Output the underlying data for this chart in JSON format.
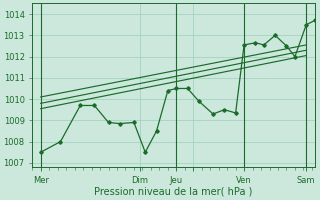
{
  "xlabel": "Pression niveau de la mer( hPa )",
  "bg_color": "#cce8dc",
  "grid_color": "#9ecfbb",
  "line_color": "#1a6b2a",
  "ylim": [
    1006.8,
    1014.5
  ],
  "xlim": [
    0,
    100
  ],
  "yticks": [
    1007,
    1008,
    1009,
    1010,
    1011,
    1012,
    1013,
    1014
  ],
  "xtick_positions": [
    3,
    38,
    51,
    57,
    75,
    97
  ],
  "xtick_labels": [
    "Mer",
    "Dim",
    "Jeu",
    "",
    "Ven",
    "Sam"
  ],
  "vlines": [
    3,
    51,
    75,
    97
  ],
  "trend_lines": [
    {
      "x": [
        3,
        97
      ],
      "y": [
        1010.1,
        1012.55
      ]
    },
    {
      "x": [
        3,
        97
      ],
      "y": [
        1009.8,
        1012.3
      ]
    },
    {
      "x": [
        3,
        97
      ],
      "y": [
        1009.55,
        1012.05
      ]
    }
  ],
  "detail_x": [
    3,
    10,
    17,
    22,
    27,
    31,
    36,
    40,
    44,
    48,
    51,
    55,
    59,
    64,
    68,
    72,
    75,
    79,
    82,
    86,
    90,
    93,
    97,
    100
  ],
  "detail_y": [
    1007.5,
    1008.0,
    1009.7,
    1009.7,
    1008.9,
    1008.85,
    1008.9,
    1007.5,
    1008.5,
    1010.4,
    1010.5,
    1010.5,
    1009.9,
    1009.3,
    1009.5,
    1009.35,
    1012.55,
    1012.65,
    1012.55,
    1013.0,
    1012.5,
    1012.0,
    1013.5,
    1013.7
  ]
}
